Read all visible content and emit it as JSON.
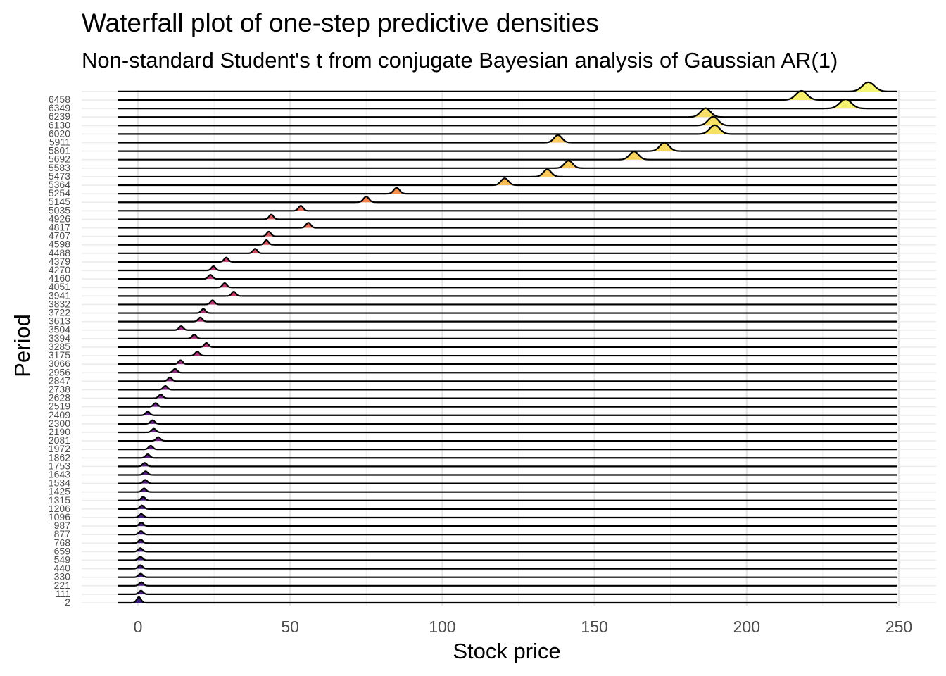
{
  "chart_data": {
    "type": "ridgeline",
    "title": "Waterfall plot of one-step predictive densities",
    "subtitle": "Non-standard Student's t from conjugate Bayesian analysis of Gaussian AR(1)",
    "xlabel": "Stock price",
    "ylabel": "Period",
    "xlim": [
      -12,
      262
    ],
    "x_ticks": [
      0,
      50,
      100,
      150,
      200,
      250
    ],
    "x_tick_labels": [
      "0",
      "50",
      "100",
      "150",
      "200",
      "250"
    ],
    "grid": true,
    "fill_scale": "viridis-plasma, dark blue (low) to yellow (high)",
    "series": [
      {
        "name": "2",
        "peak": 0.3
      },
      {
        "name": "111",
        "peak": 1.0
      },
      {
        "name": "221",
        "peak": 1.1
      },
      {
        "name": "330",
        "peak": 0.9
      },
      {
        "name": "440",
        "peak": 0.8
      },
      {
        "name": "549",
        "peak": 0.8
      },
      {
        "name": "659",
        "peak": 0.8
      },
      {
        "name": "768",
        "peak": 0.9
      },
      {
        "name": "877",
        "peak": 1.0
      },
      {
        "name": "987",
        "peak": 1.1
      },
      {
        "name": "1096",
        "peak": 1.1
      },
      {
        "name": "1206",
        "peak": 1.3
      },
      {
        "name": "1315",
        "peak": 1.7
      },
      {
        "name": "1425",
        "peak": 2.0
      },
      {
        "name": "1534",
        "peak": 2.4
      },
      {
        "name": "1643",
        "peak": 2.5
      },
      {
        "name": "1753",
        "peak": 2.2
      },
      {
        "name": "1862",
        "peak": 3.2
      },
      {
        "name": "1972",
        "peak": 4.2
      },
      {
        "name": "2081",
        "peak": 6.7
      },
      {
        "name": "2190",
        "peak": 5.2
      },
      {
        "name": "2300",
        "peak": 4.8
      },
      {
        "name": "2409",
        "peak": 3.2
      },
      {
        "name": "2519",
        "peak": 5.8
      },
      {
        "name": "2628",
        "peak": 7.5
      },
      {
        "name": "2738",
        "peak": 9.0
      },
      {
        "name": "2847",
        "peak": 10.5
      },
      {
        "name": "2956",
        "peak": 12.2
      },
      {
        "name": "3066",
        "peak": 14.0
      },
      {
        "name": "3175",
        "peak": 19.5
      },
      {
        "name": "3285",
        "peak": 22.5
      },
      {
        "name": "3394",
        "peak": 18.5
      },
      {
        "name": "3504",
        "peak": 14.2
      },
      {
        "name": "3613",
        "peak": 20.5
      },
      {
        "name": "3722",
        "peak": 21.5
      },
      {
        "name": "3832",
        "peak": 24.5
      },
      {
        "name": "3941",
        "peak": 31.5
      },
      {
        "name": "4051",
        "peak": 28.5
      },
      {
        "name": "4160",
        "peak": 23.8
      },
      {
        "name": "4270",
        "peak": 24.8
      },
      {
        "name": "4379",
        "peak": 29.0
      },
      {
        "name": "4488",
        "peak": 38.5
      },
      {
        "name": "4598",
        "peak": 42.2
      },
      {
        "name": "4707",
        "peak": 43.0
      },
      {
        "name": "4817",
        "peak": 56.0
      },
      {
        "name": "4926",
        "peak": 43.8
      },
      {
        "name": "5035",
        "peak": 53.5
      },
      {
        "name": "5145",
        "peak": 75.0
      },
      {
        "name": "5254",
        "peak": 85.0
      },
      {
        "name": "5364",
        "peak": 120.5
      },
      {
        "name": "5473",
        "peak": 134.5
      },
      {
        "name": "5583",
        "peak": 141.5
      },
      {
        "name": "5692",
        "peak": 163.0
      },
      {
        "name": "5801",
        "peak": 173.0
      },
      {
        "name": "5911",
        "peak": 138.0
      },
      {
        "name": "6020",
        "peak": 189.5
      },
      {
        "name": "6130",
        "peak": 189.0
      },
      {
        "name": "6239",
        "peak": 186.5
      },
      {
        "name": "6349",
        "peak": 232.5
      },
      {
        "name": "6458",
        "peak": 218.0
      },
      {
        "name": "",
        "peak": 240.0
      }
    ]
  }
}
